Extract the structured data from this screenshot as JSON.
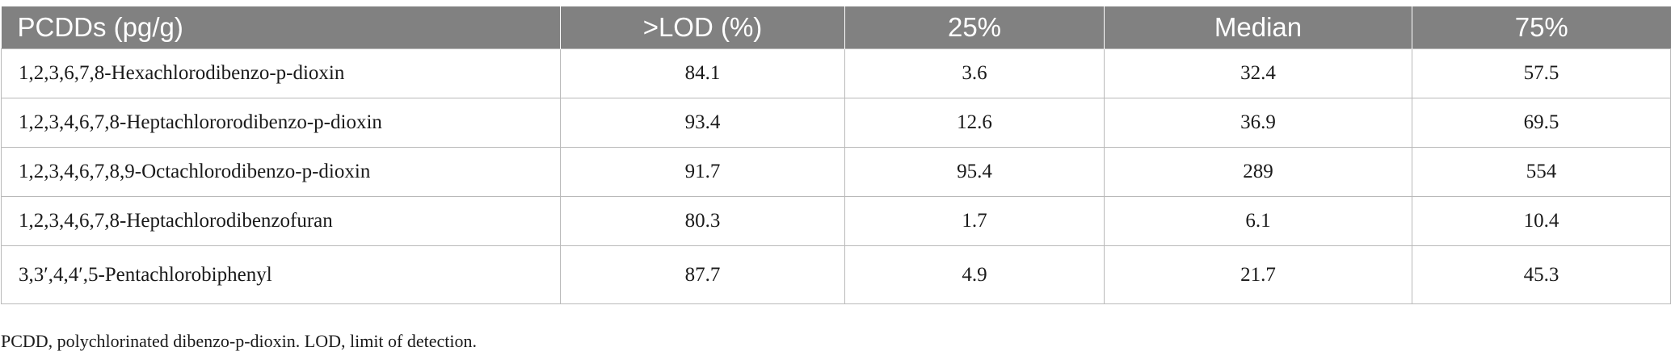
{
  "table": {
    "headers": [
      "PCDDs (pg/g)",
      ">LOD (%)",
      "25%",
      "Median",
      "75%"
    ],
    "rows": [
      [
        "1,2,3,6,7,8-Hexachlorodibenzo-p-dioxin",
        "84.1",
        "3.6",
        "32.4",
        "57.5"
      ],
      [
        "1,2,3,4,6,7,8-Heptachlororodibenzo-p-dioxin",
        "93.4",
        "12.6",
        "36.9",
        "69.5"
      ],
      [
        "1,2,3,4,6,7,8,9-Octachlorodibenzo-p-dioxin",
        "91.7",
        "95.4",
        "289",
        "554"
      ],
      [
        "1,2,3,4,6,7,8-Heptachlorodibenzofuran",
        "80.3",
        "1.7",
        "6.1",
        "10.4"
      ],
      [
        "3,3′,4,4′,5-Pentachlorobiphenyl",
        "87.7",
        "4.9",
        "21.7",
        "45.3"
      ]
    ],
    "header_color": "#818181"
  },
  "footnote": "PCDD, polychlorinated dibenzo-p-dioxin. LOD, limit of detection."
}
